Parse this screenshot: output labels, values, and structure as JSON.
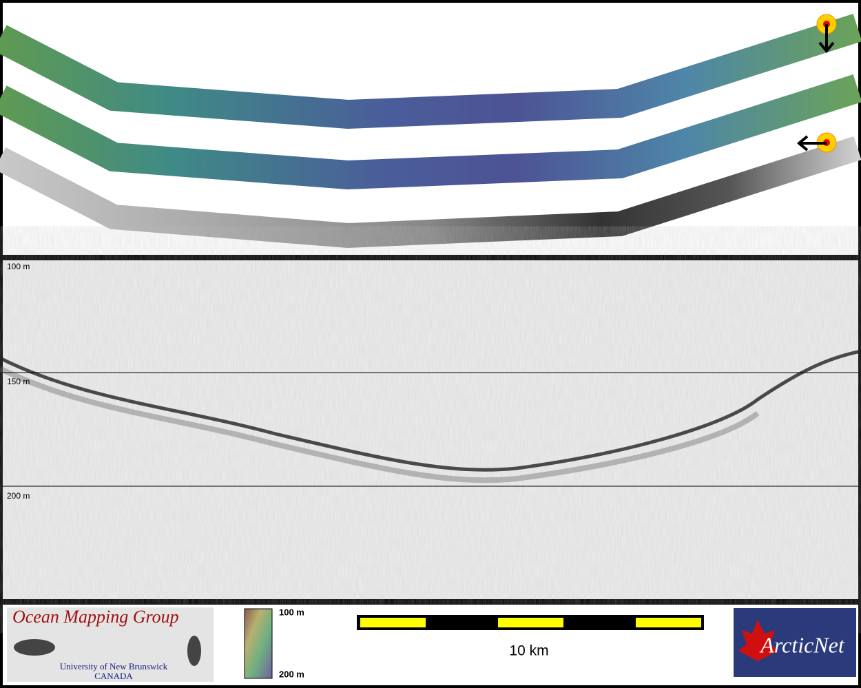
{
  "profile": {
    "depth_labels": [
      "100 m",
      "150 m",
      "200 m"
    ]
  },
  "footer": {
    "logo_title": "Ocean Mapping Group",
    "logo_university": "University of New Brunswick",
    "logo_country": "CANADA",
    "colorbar_top": "100 m",
    "colorbar_bottom": "200 m",
    "scale_label": "10 km",
    "partner": "ArcticNet"
  }
}
